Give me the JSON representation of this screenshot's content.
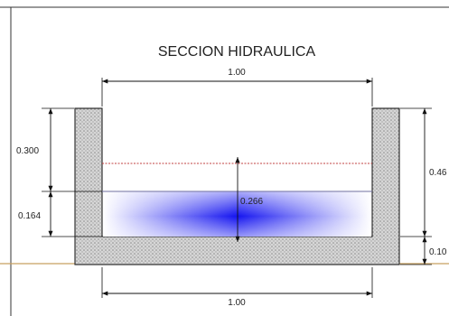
{
  "title": "SECCION HIDRAULICA",
  "dimensions": {
    "top_width": "1.00",
    "bottom_width": "1.00",
    "freeboard": "0.300",
    "water_depth": "0.164",
    "water_level_arrow": "0.266",
    "right_total": "0.46",
    "right_base": "0.10"
  },
  "colors": {
    "concrete_fill": "#d2d2d2",
    "water_core": "#1010ee",
    "water_edge": "#ffffff",
    "freeboard_line": "#c04040",
    "ground_line": "#c8a060",
    "dimension_line": "#111111"
  }
}
